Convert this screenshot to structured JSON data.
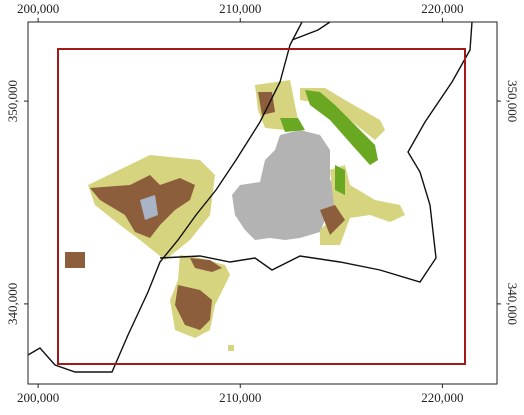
{
  "chart_data": {
    "type": "map",
    "xlim": [
      199500,
      222700
    ],
    "ylim": [
      336050,
      353900
    ],
    "xticks": [
      {
        "value": 200000,
        "label": "200,000"
      },
      {
        "value": 210000,
        "label": "210,000"
      },
      {
        "value": 220000,
        "label": "220,000"
      }
    ],
    "yticks": [
      {
        "value": 340000,
        "label": "340,000"
      },
      {
        "value": 350000,
        "label": "350,000"
      }
    ]
  }
}
